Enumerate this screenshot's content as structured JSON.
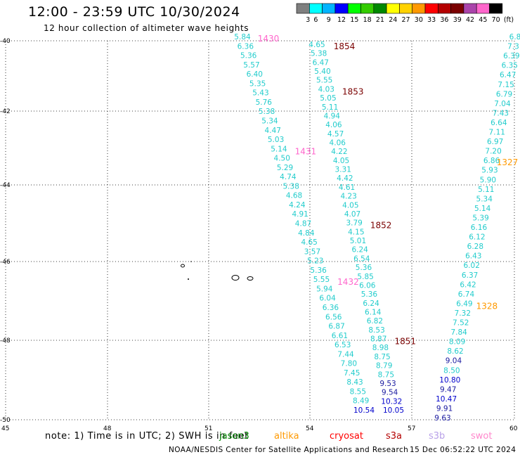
{
  "title": "12:00 - 23:59 UTC 10/30/2024",
  "subtitle": "12 hour collection of altimeter wave heights",
  "color_scale": {
    "stops": [
      {
        "label": "3",
        "color": "#7f7f7f"
      },
      {
        "label": "6",
        "color": "#00ffff"
      },
      {
        "label": "9",
        "color": "#00b4ff"
      },
      {
        "label": "12",
        "color": "#0000ff"
      },
      {
        "label": "15",
        "color": "#00ff00"
      },
      {
        "label": "18",
        "color": "#33cc00"
      },
      {
        "label": "21",
        "color": "#008800"
      },
      {
        "label": "24",
        "color": "#ffff00"
      },
      {
        "label": "27",
        "color": "#ffd200"
      },
      {
        "label": "30",
        "color": "#ff9900"
      },
      {
        "label": "33",
        "color": "#ff0000"
      },
      {
        "label": "36",
        "color": "#b40000"
      },
      {
        "label": "39",
        "color": "#7a0000"
      },
      {
        "label": "42",
        "color": "#aa44aa"
      },
      {
        "label": "45",
        "color": "#ff66cc"
      },
      {
        "label": "70",
        "color": "#000000"
      }
    ],
    "unit": "(ft)"
  },
  "axes": {
    "lat_labels": [
      "-40",
      "-42",
      "-44",
      "-46",
      "-48",
      "-50"
    ],
    "lon_labels": [
      "45",
      "48",
      "51",
      "54",
      "57",
      "60"
    ]
  },
  "tracks": [
    {
      "name": "track-1430",
      "time_label": "1430",
      "time_color": "#ff66cc",
      "color": "#33dddd",
      "values": [
        "5.84",
        "6.36",
        "5.36",
        "5.57",
        "6.40",
        "5.35",
        "5.43",
        "5.76",
        "5.38",
        "5.34",
        "4.47",
        "5.03",
        "5.14",
        "4.50",
        "5.29",
        "4.74",
        "5.38",
        "4.68",
        "4.24",
        "4.91",
        "4.87",
        "4.84",
        "4.65",
        "3.57",
        "5.23",
        "5.36",
        "5.55",
        "5.94",
        "6.04",
        "6.36",
        "6.56",
        "6.87",
        "6.61",
        "6.53",
        "7.44",
        "7.80",
        "7.45",
        "8.43",
        "8.55",
        "8.49",
        "10.54"
      ],
      "mid_labels": [
        {
          "text": "1431",
          "after": 12
        },
        {
          "text": "1432",
          "after": 26
        }
      ]
    },
    {
      "name": "track-1854",
      "time_label": "1854",
      "time_color": "#7a0000",
      "color": "#33dddd",
      "values": [
        "4.65",
        "5.38",
        "6.47",
        "5.40",
        "5.55",
        "4.03",
        "5.05",
        "5.11",
        "4.94",
        "4.06",
        "4.57",
        "4.06",
        "4.22",
        "4.05",
        "3.31",
        "4.42",
        "4.61",
        "4.23",
        "4.05",
        "4.07",
        "3.79",
        "4.15",
        "5.01",
        "6.24",
        "6.54",
        "5.36",
        "5.85",
        "6.06",
        "5.36",
        "6.24",
        "6.14",
        "6.82",
        "8.53",
        "8.87",
        "8.98",
        "8.75",
        "8.79",
        "8.75",
        "9.53",
        "9.54",
        "10.32",
        "10.05"
      ],
      "mid_labels": [
        {
          "text": "1853",
          "after": 5
        },
        {
          "text": "1852",
          "after": 20
        },
        {
          "text": "1851",
          "after": 33
        }
      ]
    },
    {
      "name": "track-1327",
      "time_label": "1327",
      "time_color": "#ff9900",
      "color": "#33dddd",
      "values": [
        "6.8",
        "7.3",
        "6.39",
        "6.35",
        "6.47",
        "7.15",
        "6.79",
        "7.04",
        "7.43",
        "6.64",
        "7.11",
        "6.97",
        "7.20",
        "6.86",
        "5.93",
        "5.90",
        "5.11",
        "5.34",
        "5.14",
        "5.39",
        "6.16",
        "6.12",
        "6.28",
        "6.43",
        "6.02",
        "6.37",
        "6.42",
        "6.74",
        "6.49",
        "7.32",
        "7.52",
        "7.84",
        "8.09",
        "8.62",
        "9.04",
        "8.50",
        "10.80",
        "9.47",
        "10.47",
        "9.91",
        "9.63"
      ],
      "mid_labels": [
        {
          "text": "1328",
          "after": 28
        }
      ]
    }
  ],
  "note": "note:  1) Time is in UTC; 2) SWH is in feet",
  "legend": [
    {
      "name": "jason3",
      "color": "#008800"
    },
    {
      "name": "altika",
      "color": "#ff9900"
    },
    {
      "name": "cryosat",
      "color": "#ff0000"
    },
    {
      "name": "s3a",
      "color": "#b40000"
    },
    {
      "name": "s3b",
      "color": "#b8a0e8"
    },
    {
      "name": "swot",
      "color": "#ff88cc"
    }
  ],
  "credit": "NOAA/NESDIS Center for Satellite Applications and Research",
  "timestamp": "15 Dec 06:52:22 UTC 2024"
}
